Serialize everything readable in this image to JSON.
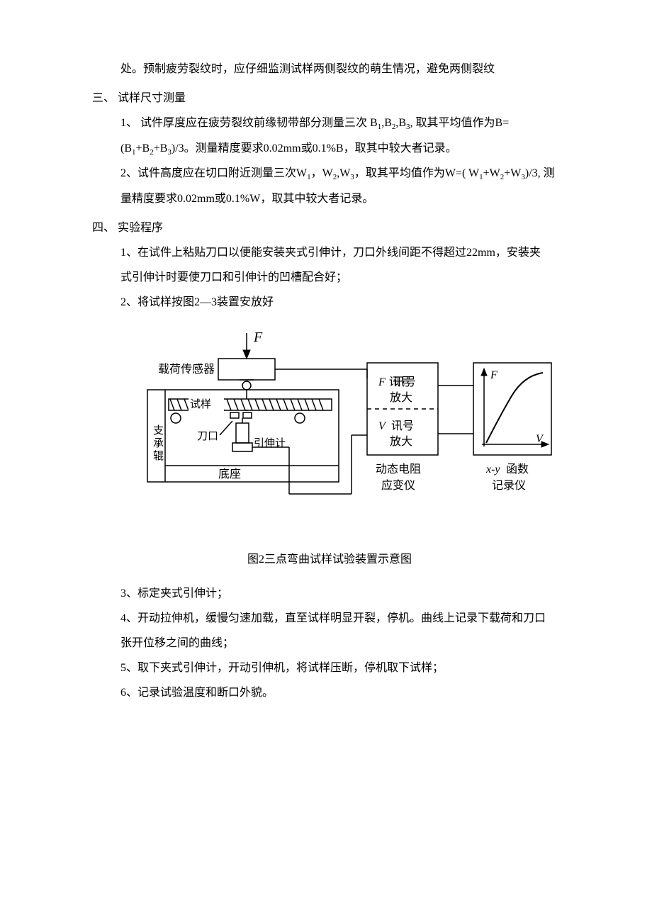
{
  "top_line": "处。预制疲劳裂纹时，应仔细监测试样两侧裂纹的萌生情况，避免两侧裂纹",
  "sec3": {
    "head": "三、 试样尺寸测量",
    "p1a": "1、 试件厚度应在疲劳裂纹前缘韧带部分测量三次  B",
    "p1b": ",B",
    "p1c": ",B",
    "p1d": ", 取其平均值作为B=",
    "p2a": "(B",
    "p2b": "+B",
    "p2c": "+B",
    "p2d": ")/3。测量精度要求0.02mm或0.1%B，取其中较大者记录。",
    "p3a": "2、试件高度应在切口附近测量三次W",
    "p3b": "，W",
    "p3c": ",W",
    "p3d": "，取其平均值作为W=( W",
    "p3e": "+W",
    "p3f": "+W",
    "p3g": ")/3,  测",
    "p4": "量精度要求0.02mm或0.1%W，取其中较大者记录。"
  },
  "sec4": {
    "head": "四、 实验程序",
    "p1": "1、在试件上粘贴刀口以便能安装夹式引伸计，刀口外线间距不得超过22mm，安装夹",
    "p1b": "式引伸计时要使刀口和引伸计的凹槽配合好；",
    "p2": "2、将试样按图2—3装置安放好",
    "caption": "图2三点弯曲试样试验装置示意图",
    "p3": "3、标定夹式引伸计；",
    "p4": "4、开动拉伸机，缓慢匀速加载，直至试样明显开裂，停机。曲线上记录下载荷和刀口",
    "p4b": "张开位移之间的曲线；",
    "p5": "5、取下夹式引伸计，开动引伸机，将试样压断，停机取下试样；",
    "p6": "6、记录试验温度和断口外貌。"
  },
  "diagram": {
    "F_arrow": "F",
    "load_sensor": "载荷传感器",
    "specimen": "试样",
    "roller": "支承辊",
    "knife": "刀口",
    "exten": "引伸计",
    "base": "底座",
    "F_amp1": "F 讯号",
    "F_amp2": "放大",
    "V_amp1": "V 讯号",
    "V_amp2": "放大",
    "amp_label1": "动态电阻",
    "amp_label2": "应变仪",
    "rec_label1": "x-y函数",
    "rec_label2": "记录仪",
    "axis_F": "F",
    "axis_V": "V",
    "stroke": "#000000",
    "stroke_w": 1.5,
    "font_cn": "SimSun, Songti SC, serif",
    "font_it": "Times New Roman, serif",
    "fs_label": 16,
    "fs_small": 15
  }
}
